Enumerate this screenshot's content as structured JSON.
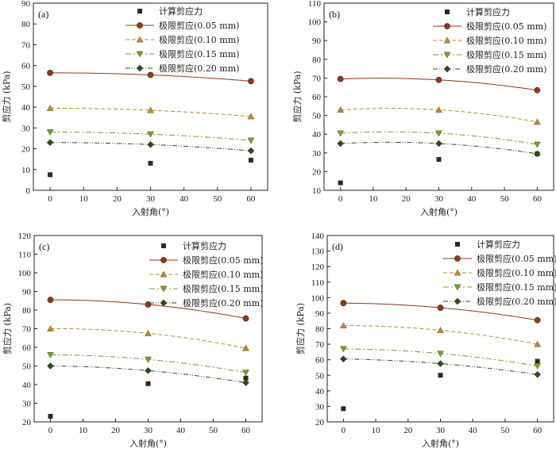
{
  "legend_labels": [
    "计算剪应力",
    "极限剪应(0.05 mm)",
    "极限剪应(0.10 mm)",
    "极限剪应(0.15 mm)",
    "极限剪应(0.20 mm)"
  ],
  "colors": {
    "computed": "#3a2418",
    "s005": "#8b3a1e",
    "s010": "#b98a3a",
    "s015": "#7d9a34",
    "s020": "#2f4a22"
  },
  "chart_data": [
    {
      "type": "line",
      "panel": "(a)",
      "xlabel": "入射角(°)",
      "ylabel": "剪应力 (kPa)",
      "x": [
        0,
        30,
        60
      ],
      "xlim": [
        -5,
        65
      ],
      "xticks": [
        0,
        10,
        20,
        30,
        40,
        50,
        60
      ],
      "ylim": [
        0,
        90
      ],
      "yticks": [
        0,
        10,
        20,
        30,
        40,
        50,
        60,
        70,
        80,
        90
      ],
      "grid": false,
      "legend": "top-right",
      "series": [
        {
          "name": "计算剪应力",
          "values": [
            7.5,
            13,
            14.5
          ]
        },
        {
          "name": "极限剪应(0.05 mm)",
          "values": [
            56.5,
            55.5,
            52.5
          ]
        },
        {
          "name": "极限剪应(0.10 mm)",
          "values": [
            39.5,
            38.5,
            35.5
          ]
        },
        {
          "name": "极限剪应(0.15 mm)",
          "values": [
            28,
            27,
            24
          ]
        },
        {
          "name": "极限剪应(0.20 mm)",
          "values": [
            23,
            22,
            19
          ]
        }
      ]
    },
    {
      "type": "line",
      "panel": "(b)",
      "xlabel": "入射角(°)",
      "ylabel": "剪应力 (kPa)",
      "x": [
        0,
        30,
        60
      ],
      "xlim": [
        -5,
        65
      ],
      "xticks": [
        0,
        10,
        20,
        30,
        40,
        50,
        60
      ],
      "ylim": [
        10,
        110
      ],
      "yticks": [
        10,
        20,
        30,
        40,
        50,
        60,
        70,
        80,
        90,
        100,
        110
      ],
      "grid": false,
      "legend": "top-right",
      "series": [
        {
          "name": "计算剪应力",
          "values": [
            14,
            26.5,
            29.5
          ]
        },
        {
          "name": "极限剪应(0.05 mm)",
          "values": [
            69.5,
            69,
            63.5
          ]
        },
        {
          "name": "极限剪应(0.10 mm)",
          "values": [
            53,
            53,
            46.5
          ]
        },
        {
          "name": "极限剪应(0.15 mm)",
          "values": [
            40.5,
            40.5,
            34.5
          ]
        },
        {
          "name": "极限剪应(0.20 mm)",
          "values": [
            35,
            35,
            29.5
          ]
        }
      ]
    },
    {
      "type": "line",
      "panel": "(c)",
      "xlabel": "入射角(°)",
      "ylabel": "剪应力 (kPa)",
      "x": [
        0,
        30,
        60
      ],
      "xlim": [
        -5,
        65
      ],
      "xticks": [
        0,
        10,
        20,
        30,
        40,
        50,
        60
      ],
      "ylim": [
        20,
        120
      ],
      "yticks": [
        20,
        30,
        40,
        50,
        60,
        70,
        80,
        90,
        100,
        110,
        120
      ],
      "grid": false,
      "legend": "top-right",
      "series": [
        {
          "name": "计算剪应力",
          "values": [
            23,
            40.5,
            43.5
          ]
        },
        {
          "name": "极限剪应(0.05 mm)",
          "values": [
            85.5,
            83,
            75.5
          ]
        },
        {
          "name": "极限剪应(0.10 mm)",
          "values": [
            70,
            67.5,
            59.5
          ]
        },
        {
          "name": "极限剪应(0.15 mm)",
          "values": [
            56,
            53.5,
            46.5
          ]
        },
        {
          "name": "极限剪应(0.20 mm)",
          "values": [
            50,
            47.5,
            41
          ]
        }
      ]
    },
    {
      "type": "line",
      "panel": "(d)",
      "xlabel": "入射角(°)",
      "ylabel": "剪应力 (kPa)",
      "x": [
        0,
        30,
        60
      ],
      "xlim": [
        -5,
        65
      ],
      "xticks": [
        0,
        10,
        20,
        30,
        40,
        50,
        60
      ],
      "ylim": [
        20,
        140
      ],
      "yticks": [
        20,
        30,
        40,
        50,
        60,
        70,
        80,
        90,
        100,
        110,
        120,
        130,
        140
      ],
      "grid": false,
      "legend": "top-right",
      "series": [
        {
          "name": "计算剪应力",
          "values": [
            28.5,
            50,
            59
          ]
        },
        {
          "name": "极限剪应(0.05 mm)",
          "values": [
            96.5,
            93.5,
            85.5
          ]
        },
        {
          "name": "极限剪应(0.10 mm)",
          "values": [
            82,
            79,
            70
          ]
        },
        {
          "name": "极限剪应(0.15 mm)",
          "values": [
            67,
            64,
            56
          ]
        },
        {
          "name": "极限剪应(0.20 mm)",
          "values": [
            60.5,
            57.5,
            50.5
          ]
        }
      ]
    }
  ]
}
